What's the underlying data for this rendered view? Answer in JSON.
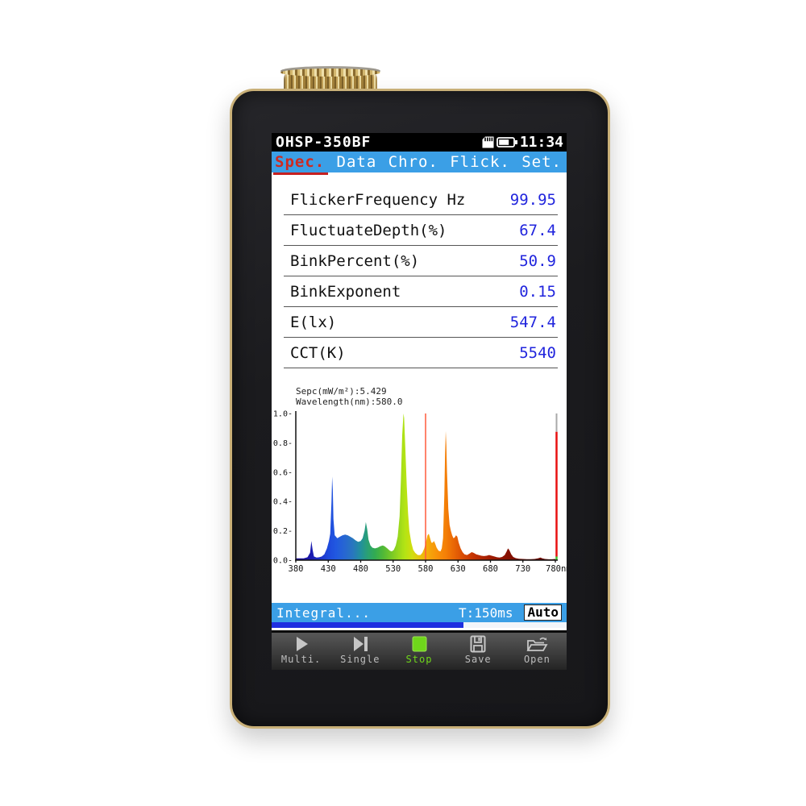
{
  "titlebar": {
    "title": "OHSP-350BF",
    "time": "11:34",
    "icons": [
      "sd-card-icon",
      "battery-icon"
    ]
  },
  "tabs": [
    {
      "label": "Spec.",
      "active": true
    },
    {
      "label": "Data",
      "active": false
    },
    {
      "label": "Chro.",
      "active": false
    },
    {
      "label": "Flick.",
      "active": false
    },
    {
      "label": "Set.",
      "active": false
    }
  ],
  "measurements": [
    {
      "label": "FlickerFrequency Hz",
      "value": "99.95"
    },
    {
      "label": "FluctuateDepth(%)",
      "value": "67.4"
    },
    {
      "label": "BinkPercent(%)",
      "value": "50.9"
    },
    {
      "label": "BinkExponent",
      "value": "0.15"
    },
    {
      "label": "E(lx)",
      "value": "547.4"
    },
    {
      "label": "CCT(K)",
      "value": "5540"
    }
  ],
  "chart_data": {
    "type": "area",
    "title_lines": [
      "Sepc(mW/m²):5.429",
      "Wavelength(nm):580.0"
    ],
    "xlim": [
      380,
      780
    ],
    "ylim": [
      0,
      1
    ],
    "x_ticks": [
      380,
      430,
      480,
      530,
      580,
      630,
      680,
      730,
      780
    ],
    "x_unit": "nm",
    "y_tick_labels": [
      "1.0-",
      "0.8-",
      "0.6-",
      "0.4-",
      "0.2-",
      "0.0-"
    ],
    "cursor_wavelength": 580,
    "cursor_color": "#ff5a3c",
    "right_marker": {
      "height": 0.875,
      "red": "#e81010",
      "gray": "#a9a9a9",
      "green": "#3fc42a"
    },
    "points": [
      [
        380,
        0.012
      ],
      [
        392,
        0.012
      ],
      [
        398,
        0.02
      ],
      [
        402,
        0.05
      ],
      [
        404,
        0.13
      ],
      [
        406,
        0.07
      ],
      [
        408,
        0.025
      ],
      [
        412,
        0.018
      ],
      [
        416,
        0.02
      ],
      [
        420,
        0.025
      ],
      [
        424,
        0.04
      ],
      [
        428,
        0.08
      ],
      [
        431,
        0.13
      ],
      [
        433,
        0.18
      ],
      [
        435,
        0.4
      ],
      [
        436,
        0.57
      ],
      [
        437,
        0.48
      ],
      [
        438,
        0.28
      ],
      [
        440,
        0.17
      ],
      [
        444,
        0.15
      ],
      [
        448,
        0.16
      ],
      [
        452,
        0.17
      ],
      [
        456,
        0.175
      ],
      [
        460,
        0.17
      ],
      [
        464,
        0.16
      ],
      [
        468,
        0.15
      ],
      [
        472,
        0.135
      ],
      [
        476,
        0.125
      ],
      [
        480,
        0.13
      ],
      [
        483,
        0.15
      ],
      [
        486,
        0.2
      ],
      [
        488,
        0.26
      ],
      [
        490,
        0.21
      ],
      [
        492,
        0.14
      ],
      [
        495,
        0.1
      ],
      [
        498,
        0.085
      ],
      [
        502,
        0.08
      ],
      [
        506,
        0.085
      ],
      [
        510,
        0.095
      ],
      [
        514,
        0.1
      ],
      [
        517,
        0.095
      ],
      [
        521,
        0.08
      ],
      [
        525,
        0.065
      ],
      [
        528,
        0.06
      ],
      [
        531,
        0.07
      ],
      [
        534,
        0.1
      ],
      [
        537,
        0.16
      ],
      [
        540,
        0.3
      ],
      [
        542,
        0.55
      ],
      [
        544,
        0.85
      ],
      [
        546,
        1.0
      ],
      [
        547,
        0.97
      ],
      [
        549,
        0.75
      ],
      [
        551,
        0.5
      ],
      [
        553,
        0.32
      ],
      [
        555,
        0.2
      ],
      [
        558,
        0.12
      ],
      [
        561,
        0.07
      ],
      [
        564,
        0.05
      ],
      [
        568,
        0.035
      ],
      [
        572,
        0.035
      ],
      [
        575,
        0.05
      ],
      [
        578,
        0.08
      ],
      [
        581,
        0.13
      ],
      [
        583,
        0.17
      ],
      [
        585,
        0.18
      ],
      [
        587,
        0.15
      ],
      [
        589,
        0.12
      ],
      [
        591,
        0.12
      ],
      [
        593,
        0.13
      ],
      [
        595,
        0.11
      ],
      [
        597,
        0.085
      ],
      [
        600,
        0.065
      ],
      [
        603,
        0.06
      ],
      [
        605,
        0.08
      ],
      [
        607,
        0.15
      ],
      [
        609,
        0.45
      ],
      [
        610,
        0.7
      ],
      [
        611,
        0.88
      ],
      [
        612,
        0.78
      ],
      [
        613,
        0.6
      ],
      [
        615,
        0.35
      ],
      [
        617,
        0.24
      ],
      [
        619,
        0.2
      ],
      [
        621,
        0.17
      ],
      [
        623,
        0.15
      ],
      [
        625,
        0.155
      ],
      [
        627,
        0.17
      ],
      [
        629,
        0.16
      ],
      [
        631,
        0.12
      ],
      [
        634,
        0.08
      ],
      [
        637,
        0.055
      ],
      [
        640,
        0.04
      ],
      [
        644,
        0.035
      ],
      [
        648,
        0.045
      ],
      [
        651,
        0.055
      ],
      [
        654,
        0.05
      ],
      [
        658,
        0.04
      ],
      [
        662,
        0.035
      ],
      [
        666,
        0.03
      ],
      [
        670,
        0.028
      ],
      [
        674,
        0.03
      ],
      [
        678,
        0.035
      ],
      [
        682,
        0.03
      ],
      [
        686,
        0.025
      ],
      [
        690,
        0.02
      ],
      [
        694,
        0.018
      ],
      [
        698,
        0.022
      ],
      [
        702,
        0.035
      ],
      [
        705,
        0.06
      ],
      [
        707,
        0.08
      ],
      [
        709,
        0.07
      ],
      [
        712,
        0.04
      ],
      [
        715,
        0.022
      ],
      [
        719,
        0.014
      ],
      [
        724,
        0.01
      ],
      [
        730,
        0.008
      ],
      [
        736,
        0.007
      ],
      [
        742,
        0.007
      ],
      [
        748,
        0.008
      ],
      [
        753,
        0.012
      ],
      [
        757,
        0.018
      ],
      [
        760,
        0.012
      ],
      [
        764,
        0.008
      ],
      [
        770,
        0.006
      ],
      [
        775,
        0.006
      ],
      [
        780,
        0.008
      ]
    ],
    "wavelength_colors": [
      [
        380,
        "#1a0b8c"
      ],
      [
        400,
        "#1b16a8"
      ],
      [
        415,
        "#1c2dc4"
      ],
      [
        430,
        "#1e49dc"
      ],
      [
        442,
        "#2158e0"
      ],
      [
        455,
        "#2766d2"
      ],
      [
        468,
        "#2877be"
      ],
      [
        480,
        "#22909c"
      ],
      [
        490,
        "#2aa076"
      ],
      [
        502,
        "#32ab52"
      ],
      [
        515,
        "#52b936"
      ],
      [
        528,
        "#79c926"
      ],
      [
        538,
        "#97d71d"
      ],
      [
        548,
        "#b3e414"
      ],
      [
        560,
        "#d2dd0f"
      ],
      [
        572,
        "#e9c20c"
      ],
      [
        584,
        "#f5a90a"
      ],
      [
        597,
        "#f89309"
      ],
      [
        611,
        "#f47f07"
      ],
      [
        624,
        "#e96605"
      ],
      [
        637,
        "#d94d04"
      ],
      [
        652,
        "#c63503"
      ],
      [
        668,
        "#b02503"
      ],
      [
        684,
        "#9c1a02"
      ],
      [
        702,
        "#8a1202"
      ],
      [
        722,
        "#7c0d02"
      ],
      [
        745,
        "#700901"
      ],
      [
        780,
        "#620701"
      ]
    ]
  },
  "statusbar": {
    "status": "Integral...",
    "time_label": "T:150ms",
    "mode": "Auto",
    "progress_percent": 65
  },
  "toolbar": [
    {
      "label": "Multi.",
      "icon": "play-icon",
      "active": false
    },
    {
      "label": "Single",
      "icon": "step-forward-icon",
      "active": false
    },
    {
      "label": "Stop",
      "icon": "stop-icon",
      "active": true
    },
    {
      "label": "Save",
      "icon": "save-icon",
      "active": false
    },
    {
      "label": "Open",
      "icon": "open-folder-icon",
      "active": false
    }
  ],
  "colors": {
    "tab_bar_blue": "#3b9fe6",
    "active_tab_red": "#ce2a21",
    "value_blue": "#2024dd",
    "progress_fill_blue": "#1f2fe0",
    "stop_green": "#6fd61b",
    "device_gold": "#c9b078"
  }
}
